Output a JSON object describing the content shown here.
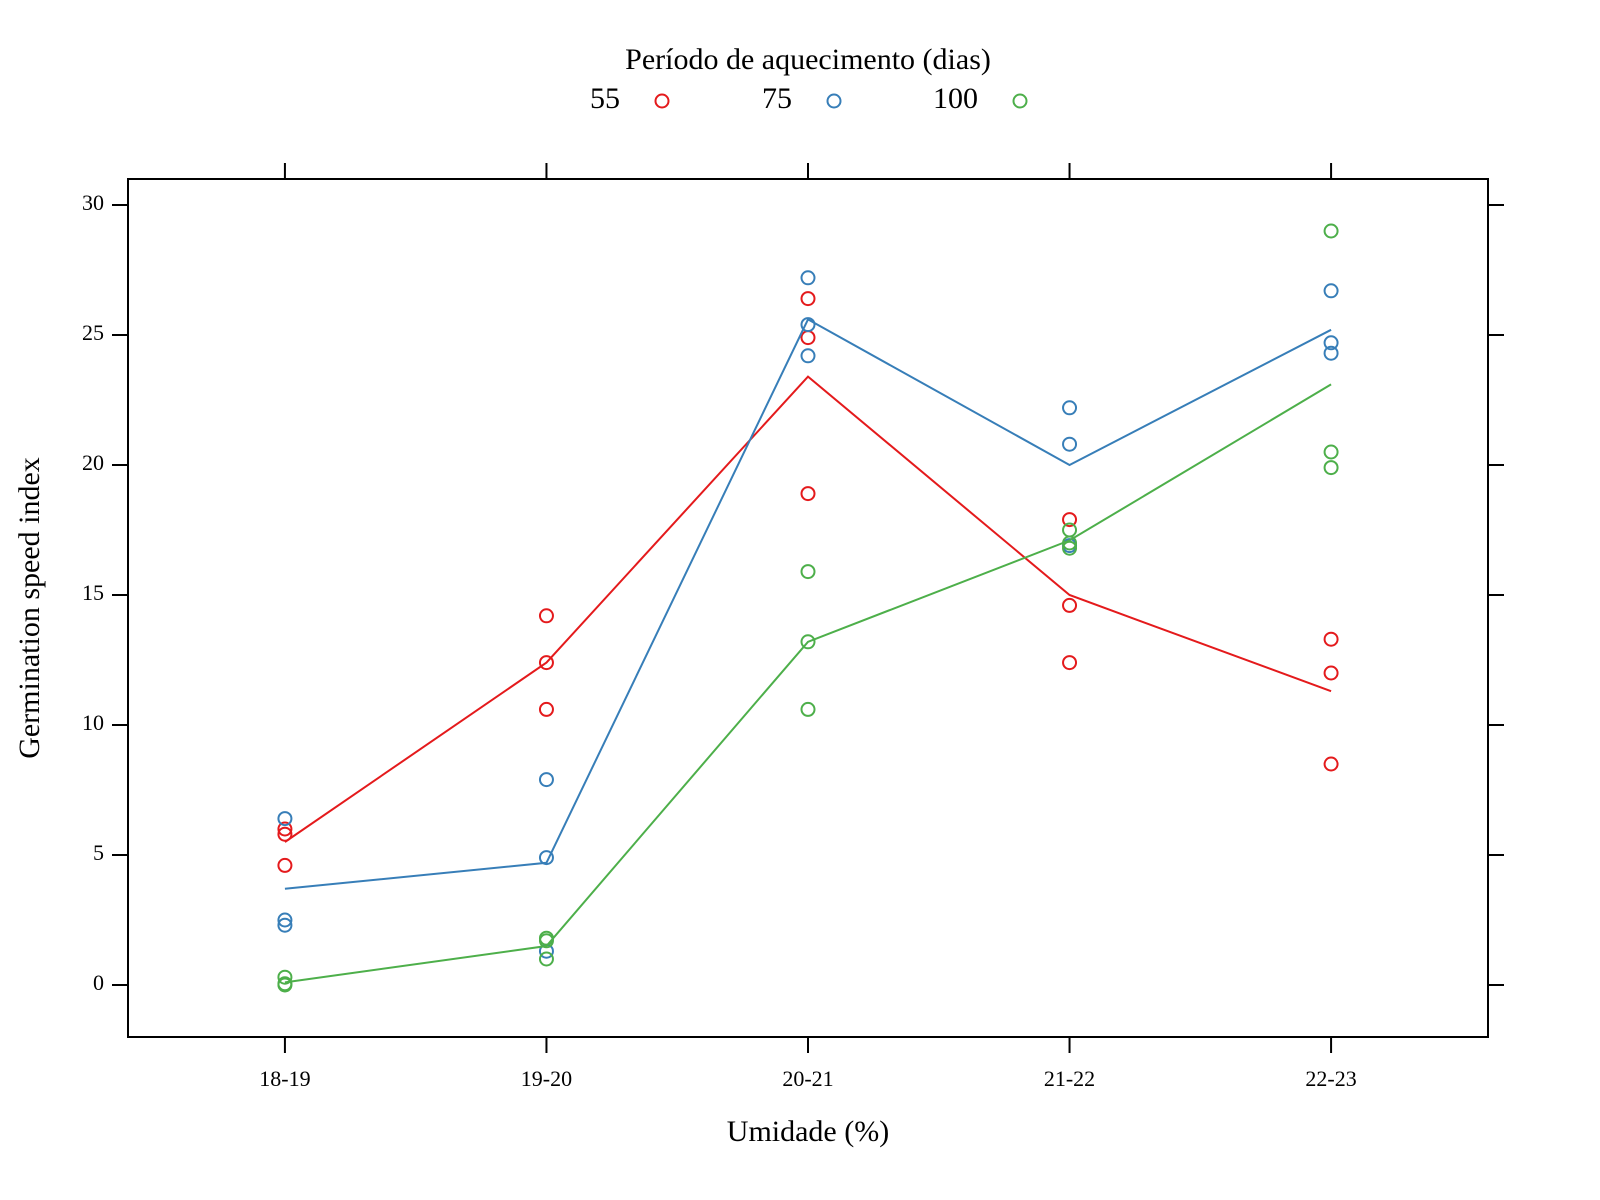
{
  "chart_data": {
    "type": "line",
    "legend_title": "Período de aquecimento (dias)",
    "legend_position": "top",
    "x_label": "Umidade (%)",
    "y_label": "Germination speed index",
    "categories": [
      "18-19",
      "19-20",
      "20-21",
      "21-22",
      "22-23"
    ],
    "ylim": [
      -2,
      31
    ],
    "yticks": [
      0,
      5,
      10,
      15,
      20,
      25,
      30
    ],
    "series": [
      {
        "name": "55",
        "color": "#e41a1c",
        "values": [
          5.5,
          12.4,
          23.4,
          15.0,
          11.3
        ],
        "points": [
          [
            6.0,
            5.8,
            4.6
          ],
          [
            14.2,
            12.4,
            10.6
          ],
          [
            26.4,
            24.9,
            18.9
          ],
          [
            17.9,
            14.6,
            12.4
          ],
          [
            13.3,
            12.0,
            8.5
          ]
        ]
      },
      {
        "name": "75",
        "color": "#377eb8",
        "values": [
          3.7,
          4.7,
          25.6,
          20.0,
          25.2
        ],
        "points": [
          [
            6.4,
            2.5,
            2.3
          ],
          [
            7.9,
            4.9,
            1.3
          ],
          [
            27.2,
            25.4,
            24.2
          ],
          [
            22.2,
            20.8,
            16.9
          ],
          [
            26.7,
            24.7,
            24.3
          ]
        ]
      },
      {
        "name": "100",
        "color": "#4daf4a",
        "values": [
          0.1,
          1.5,
          13.2,
          17.1,
          23.1
        ],
        "points": [
          [
            0.3,
            0.05,
            0.0
          ],
          [
            1.8,
            1.7,
            1.0
          ],
          [
            15.9,
            13.2,
            10.6
          ],
          [
            17.5,
            17.0,
            16.8
          ],
          [
            29.0,
            20.5,
            19.9
          ]
        ]
      }
    ]
  }
}
